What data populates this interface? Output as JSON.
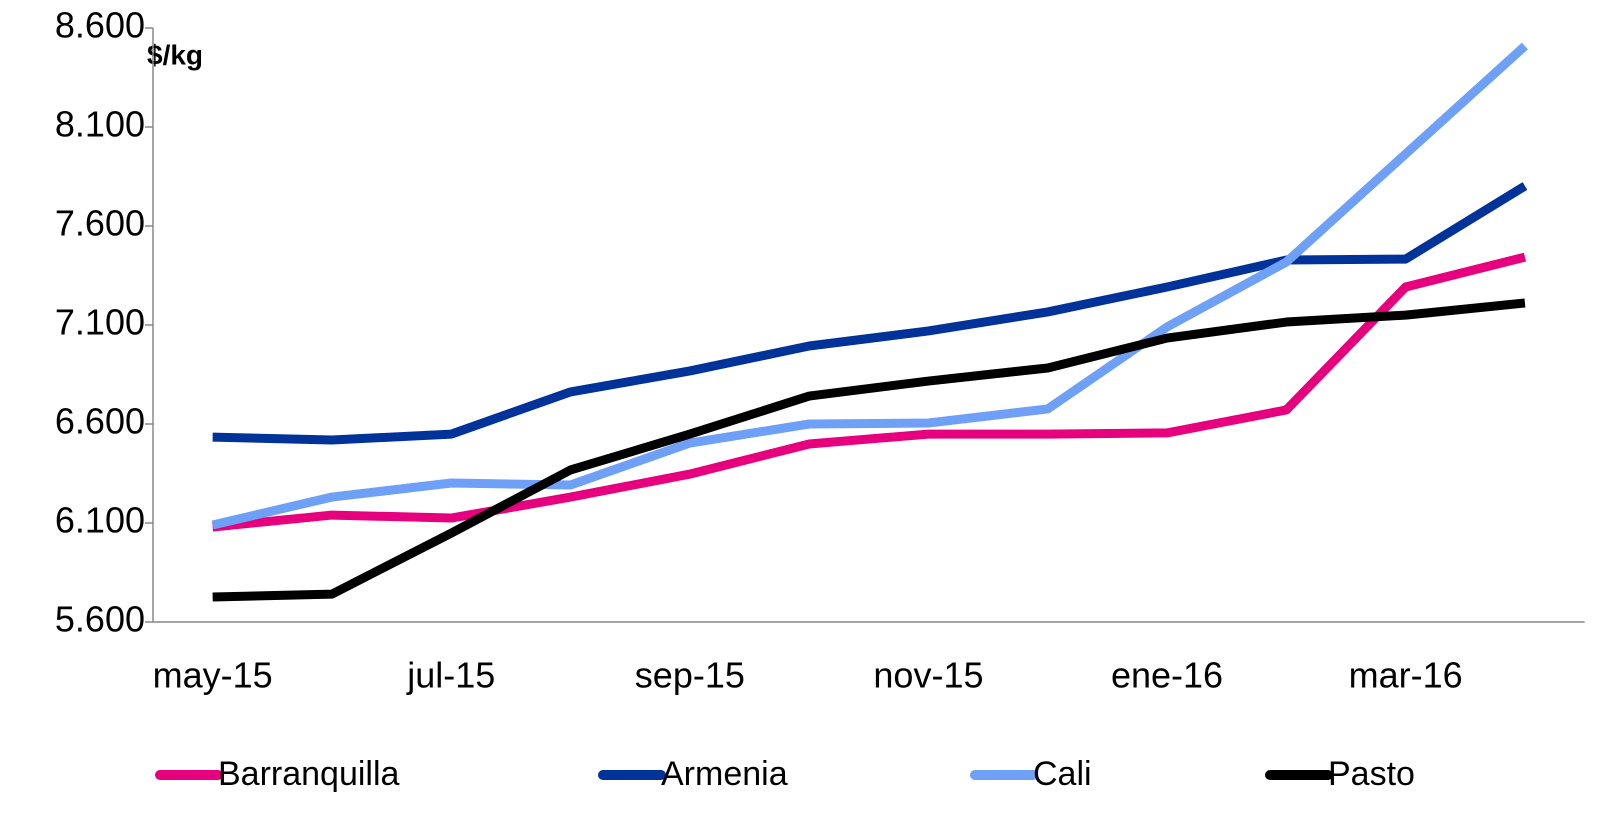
{
  "chart_data": {
    "type": "line",
    "y_label": "$/kg",
    "categories": [
      "may-15",
      null,
      "jul-15",
      null,
      "sep-15",
      null,
      "nov-15",
      null,
      "ene-16",
      null,
      "mar-16",
      null
    ],
    "series": [
      {
        "name": "Barranquilla",
        "color": "#e6007e",
        "values": [
          6080,
          6140,
          6125,
          6231,
          6347,
          6499,
          6549,
          6549,
          6555,
          6671,
          7292,
          7443
        ]
      },
      {
        "name": "Armenia",
        "color": "#003399",
        "values": [
          6534,
          6519,
          6549,
          6762,
          6868,
          6994,
          7070,
          7166,
          7292,
          7428,
          7433,
          7802
        ]
      },
      {
        "name": "Cali",
        "color": "#6fa0f7",
        "values": [
          6090,
          6231,
          6302,
          6292,
          6504,
          6600,
          6605,
          6676,
          7090,
          7418,
          7964,
          8509
        ]
      },
      {
        "name": "Pasto",
        "color": "#000000",
        "values": [
          5726,
          5741,
          6049,
          6368,
          6549,
          6741,
          6817,
          6883,
          7034,
          7115,
          7150,
          7211
        ]
      }
    ],
    "ylim": [
      5600,
      8600
    ],
    "yticks": [
      {
        "value": 5600,
        "label": "5.600"
      },
      {
        "value": 6100,
        "label": "6.100"
      },
      {
        "value": 6600,
        "label": "6.600"
      },
      {
        "value": 7100,
        "label": "7.100"
      },
      {
        "value": 7600,
        "label": "7.600"
      },
      {
        "value": 8100,
        "label": "8.100"
      },
      {
        "value": 8600,
        "label": "8.600"
      }
    ],
    "grid": false,
    "legend": "bottom"
  }
}
